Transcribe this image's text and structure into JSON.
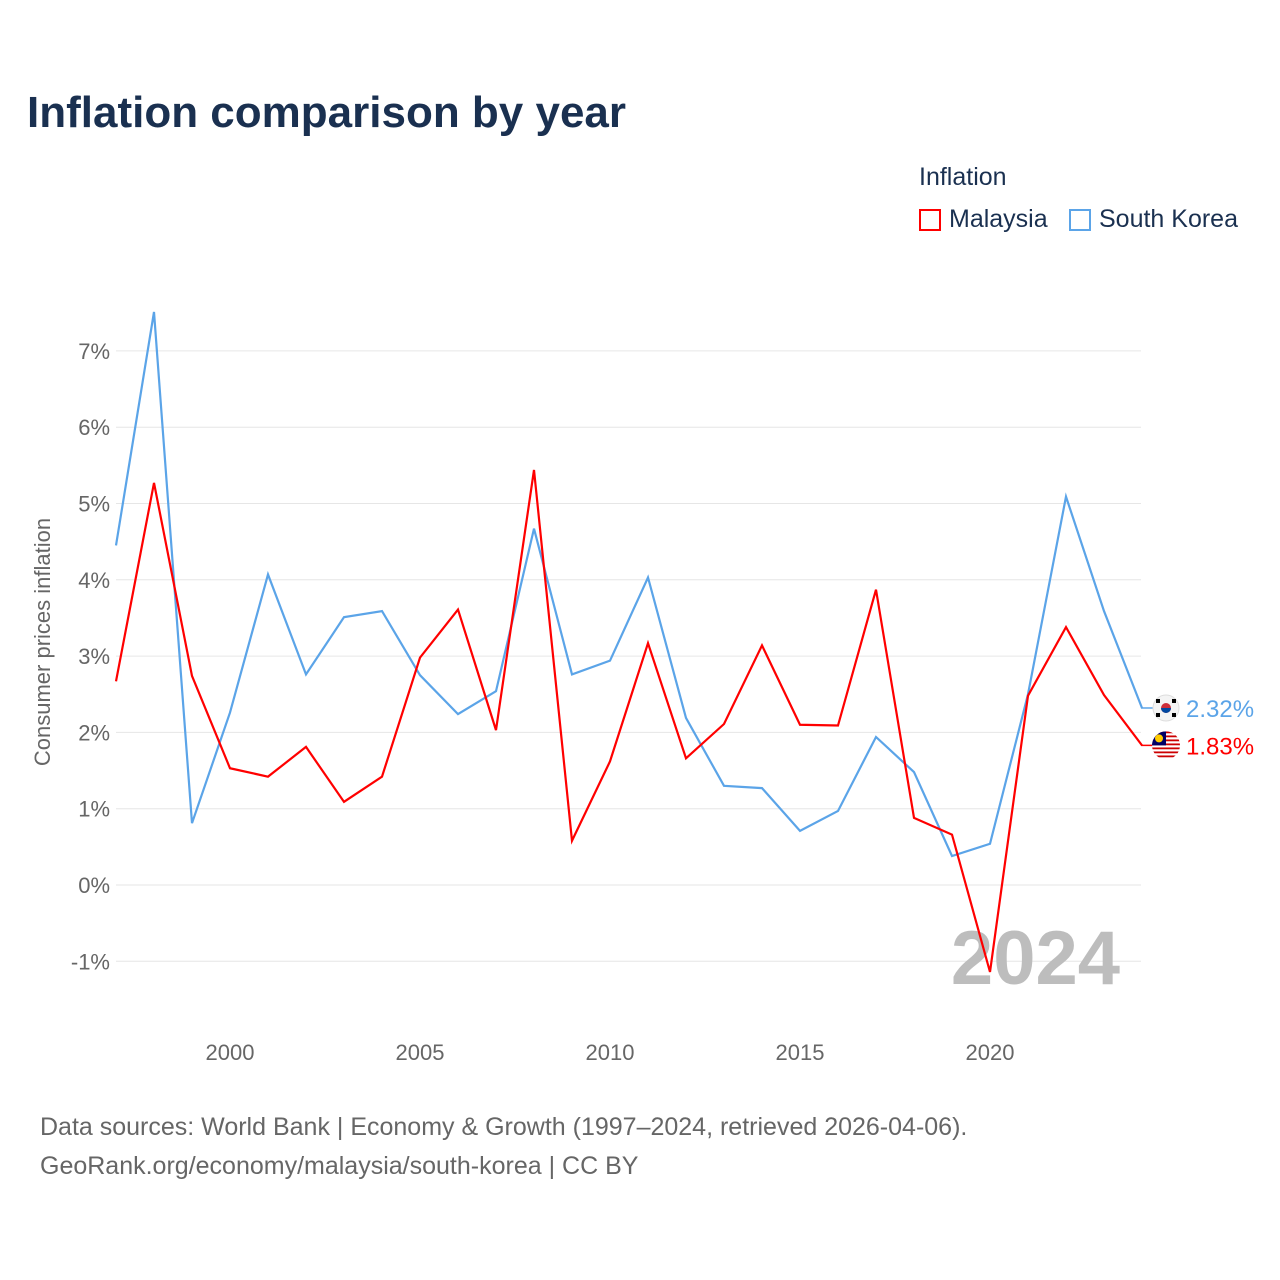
{
  "chart_data": {
    "type": "line",
    "title": "Inflation comparison by year",
    "legend_title": "Inflation",
    "legend_placement": "top-right",
    "ylabel": "Consumer prices inflation",
    "xlabel": "",
    "xlim": [
      1997,
      2024
    ],
    "ylim": [
      -1.6,
      7.6
    ],
    "x_ticks": [
      2000,
      2005,
      2010,
      2015,
      2020
    ],
    "y_ticks": [
      -1,
      0,
      1,
      2,
      3,
      4,
      5,
      6,
      7
    ],
    "y_tick_labels": [
      "-1%",
      "0%",
      "1%",
      "2%",
      "3%",
      "4%",
      "5%",
      "6%",
      "7%"
    ],
    "grid": true,
    "watermark_year": "2024",
    "x": [
      1997,
      1998,
      1999,
      2000,
      2001,
      2002,
      2003,
      2004,
      2005,
      2006,
      2007,
      2008,
      2009,
      2010,
      2011,
      2012,
      2013,
      2014,
      2015,
      2016,
      2017,
      2018,
      2019,
      2020,
      2021,
      2022,
      2023,
      2024
    ],
    "series": [
      {
        "name": "Malaysia",
        "color": "#ff0000",
        "end_label": "1.83%",
        "flag": "malaysia-flag",
        "values": [
          2.67,
          5.27,
          2.74,
          1.53,
          1.42,
          1.81,
          1.09,
          1.42,
          2.98,
          3.61,
          2.03,
          5.44,
          0.58,
          1.62,
          3.17,
          1.66,
          2.11,
          3.14,
          2.1,
          2.09,
          3.87,
          0.88,
          0.66,
          -1.14,
          2.48,
          3.38,
          2.49,
          1.83
        ]
      },
      {
        "name": "South Korea",
        "color": "#5ba4e8",
        "end_label": "2.32%",
        "flag": "south-korea-flag",
        "values": [
          4.45,
          7.51,
          0.81,
          2.26,
          4.07,
          2.76,
          3.51,
          3.59,
          2.75,
          2.24,
          2.54,
          4.67,
          2.76,
          2.94,
          4.03,
          2.19,
          1.3,
          1.27,
          0.71,
          0.97,
          1.94,
          1.48,
          0.38,
          0.54,
          2.5,
          5.09,
          3.59,
          2.32
        ]
      }
    ]
  },
  "source": {
    "line1": "Data sources: World Bank | Economy & Growth (1997–2024, retrieved 2026-04-06).",
    "line2": "GeoRank.org/economy/malaysia/south-korea | CC BY"
  }
}
